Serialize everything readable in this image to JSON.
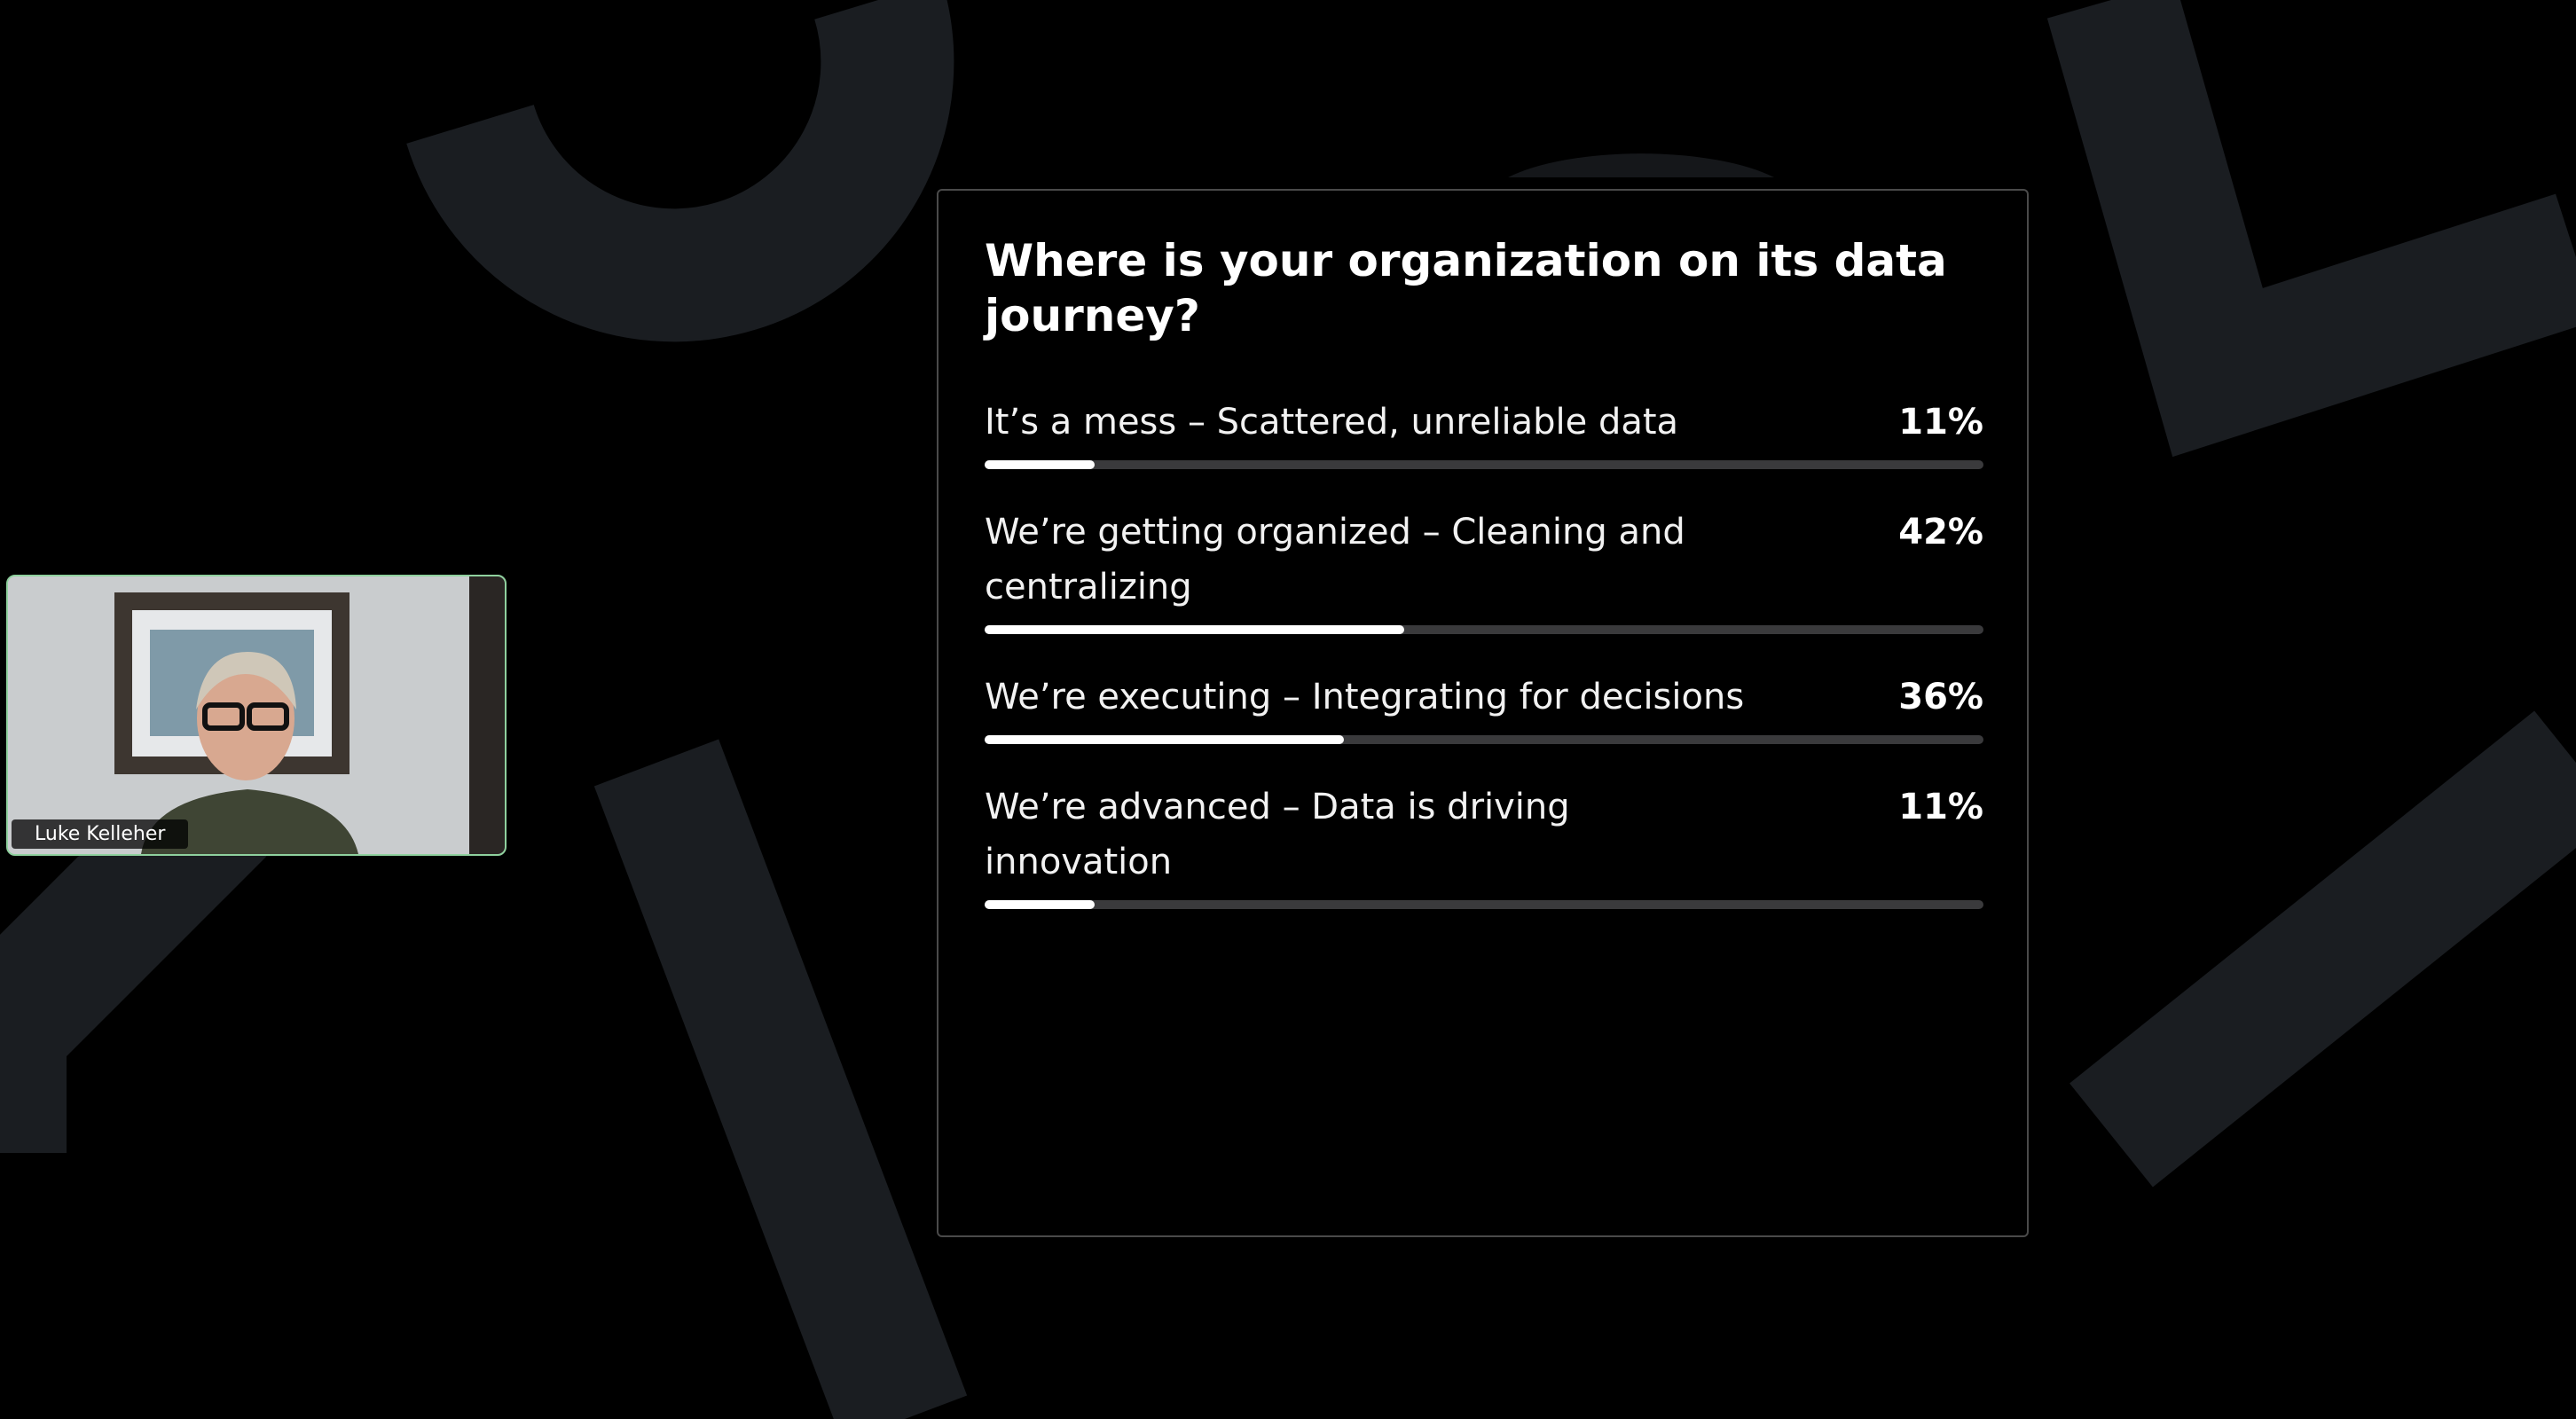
{
  "poll": {
    "question": "Where is your organization on its data journey?",
    "options": [
      {
        "label": "It’s a mess – Scattered, unreliable data",
        "value": 11,
        "value_label": "11%"
      },
      {
        "label": "We’re getting organized – Cleaning and centralizing",
        "value": 42,
        "value_label": "42%"
      },
      {
        "label": "We’re executing – Integrating for decisions",
        "value": 36,
        "value_label": "36%"
      },
      {
        "label": "We’re advanced – Data is driving innovation",
        "value": 11,
        "value_label": "11%"
      }
    ]
  },
  "participant": {
    "name": "Luke Kelleher"
  }
}
